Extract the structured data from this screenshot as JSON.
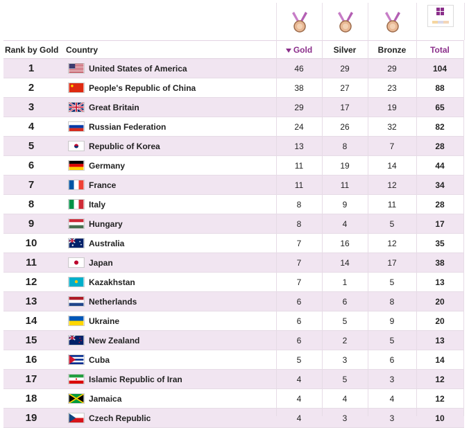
{
  "header": {
    "rank_label": "Rank by Gold",
    "country_label": "Country",
    "gold_label": "Gold",
    "silver_label": "Silver",
    "bronze_label": "Bronze",
    "total_label": "Total"
  },
  "icons": {
    "gold": "medal-icon",
    "silver": "medal-icon",
    "bronze": "medal-icon",
    "total": "all-medals-icon",
    "sort": "sort-descending-icon"
  },
  "colors": {
    "accent": "#8b2f8b",
    "alt_row": "#f1e5f1"
  },
  "rows": [
    {
      "rank": "1",
      "country": "United States of America",
      "flag": "us-flag-icon",
      "gold": "46",
      "silver": "29",
      "bronze": "29",
      "total": "104"
    },
    {
      "rank": "2",
      "country": "People's Republic of China",
      "flag": "china-flag-icon",
      "gold": "38",
      "silver": "27",
      "bronze": "23",
      "total": "88"
    },
    {
      "rank": "3",
      "country": "Great Britain",
      "flag": "uk-flag-icon",
      "gold": "29",
      "silver": "17",
      "bronze": "19",
      "total": "65"
    },
    {
      "rank": "4",
      "country": "Russian Federation",
      "flag": "russia-flag-icon",
      "gold": "24",
      "silver": "26",
      "bronze": "32",
      "total": "82"
    },
    {
      "rank": "5",
      "country": "Republic of Korea",
      "flag": "korea-flag-icon",
      "gold": "13",
      "silver": "8",
      "bronze": "7",
      "total": "28"
    },
    {
      "rank": "6",
      "country": "Germany",
      "flag": "germany-flag-icon",
      "gold": "11",
      "silver": "19",
      "bronze": "14",
      "total": "44"
    },
    {
      "rank": "7",
      "country": "France",
      "flag": "france-flag-icon",
      "gold": "11",
      "silver": "11",
      "bronze": "12",
      "total": "34"
    },
    {
      "rank": "8",
      "country": "Italy",
      "flag": "italy-flag-icon",
      "gold": "8",
      "silver": "9",
      "bronze": "11",
      "total": "28"
    },
    {
      "rank": "9",
      "country": "Hungary",
      "flag": "hungary-flag-icon",
      "gold": "8",
      "silver": "4",
      "bronze": "5",
      "total": "17"
    },
    {
      "rank": "10",
      "country": "Australia",
      "flag": "australia-flag-icon",
      "gold": "7",
      "silver": "16",
      "bronze": "12",
      "total": "35"
    },
    {
      "rank": "11",
      "country": "Japan",
      "flag": "japan-flag-icon",
      "gold": "7",
      "silver": "14",
      "bronze": "17",
      "total": "38"
    },
    {
      "rank": "12",
      "country": "Kazakhstan",
      "flag": "kazakhstan-flag-icon",
      "gold": "7",
      "silver": "1",
      "bronze": "5",
      "total": "13"
    },
    {
      "rank": "13",
      "country": "Netherlands",
      "flag": "netherlands-flag-icon",
      "gold": "6",
      "silver": "6",
      "bronze": "8",
      "total": "20"
    },
    {
      "rank": "14",
      "country": "Ukraine",
      "flag": "ukraine-flag-icon",
      "gold": "6",
      "silver": "5",
      "bronze": "9",
      "total": "20"
    },
    {
      "rank": "15",
      "country": "New Zealand",
      "flag": "new-zealand-flag-icon",
      "gold": "6",
      "silver": "2",
      "bronze": "5",
      "total": "13"
    },
    {
      "rank": "16",
      "country": "Cuba",
      "flag": "cuba-flag-icon",
      "gold": "5",
      "silver": "3",
      "bronze": "6",
      "total": "14"
    },
    {
      "rank": "17",
      "country": "Islamic Republic of Iran",
      "flag": "iran-flag-icon",
      "gold": "4",
      "silver": "5",
      "bronze": "3",
      "total": "12"
    },
    {
      "rank": "18",
      "country": "Jamaica",
      "flag": "jamaica-flag-icon",
      "gold": "4",
      "silver": "4",
      "bronze": "4",
      "total": "12"
    },
    {
      "rank": "19",
      "country": "Czech Republic",
      "flag": "czech-flag-icon",
      "gold": "4",
      "silver": "3",
      "bronze": "3",
      "total": "10"
    }
  ]
}
